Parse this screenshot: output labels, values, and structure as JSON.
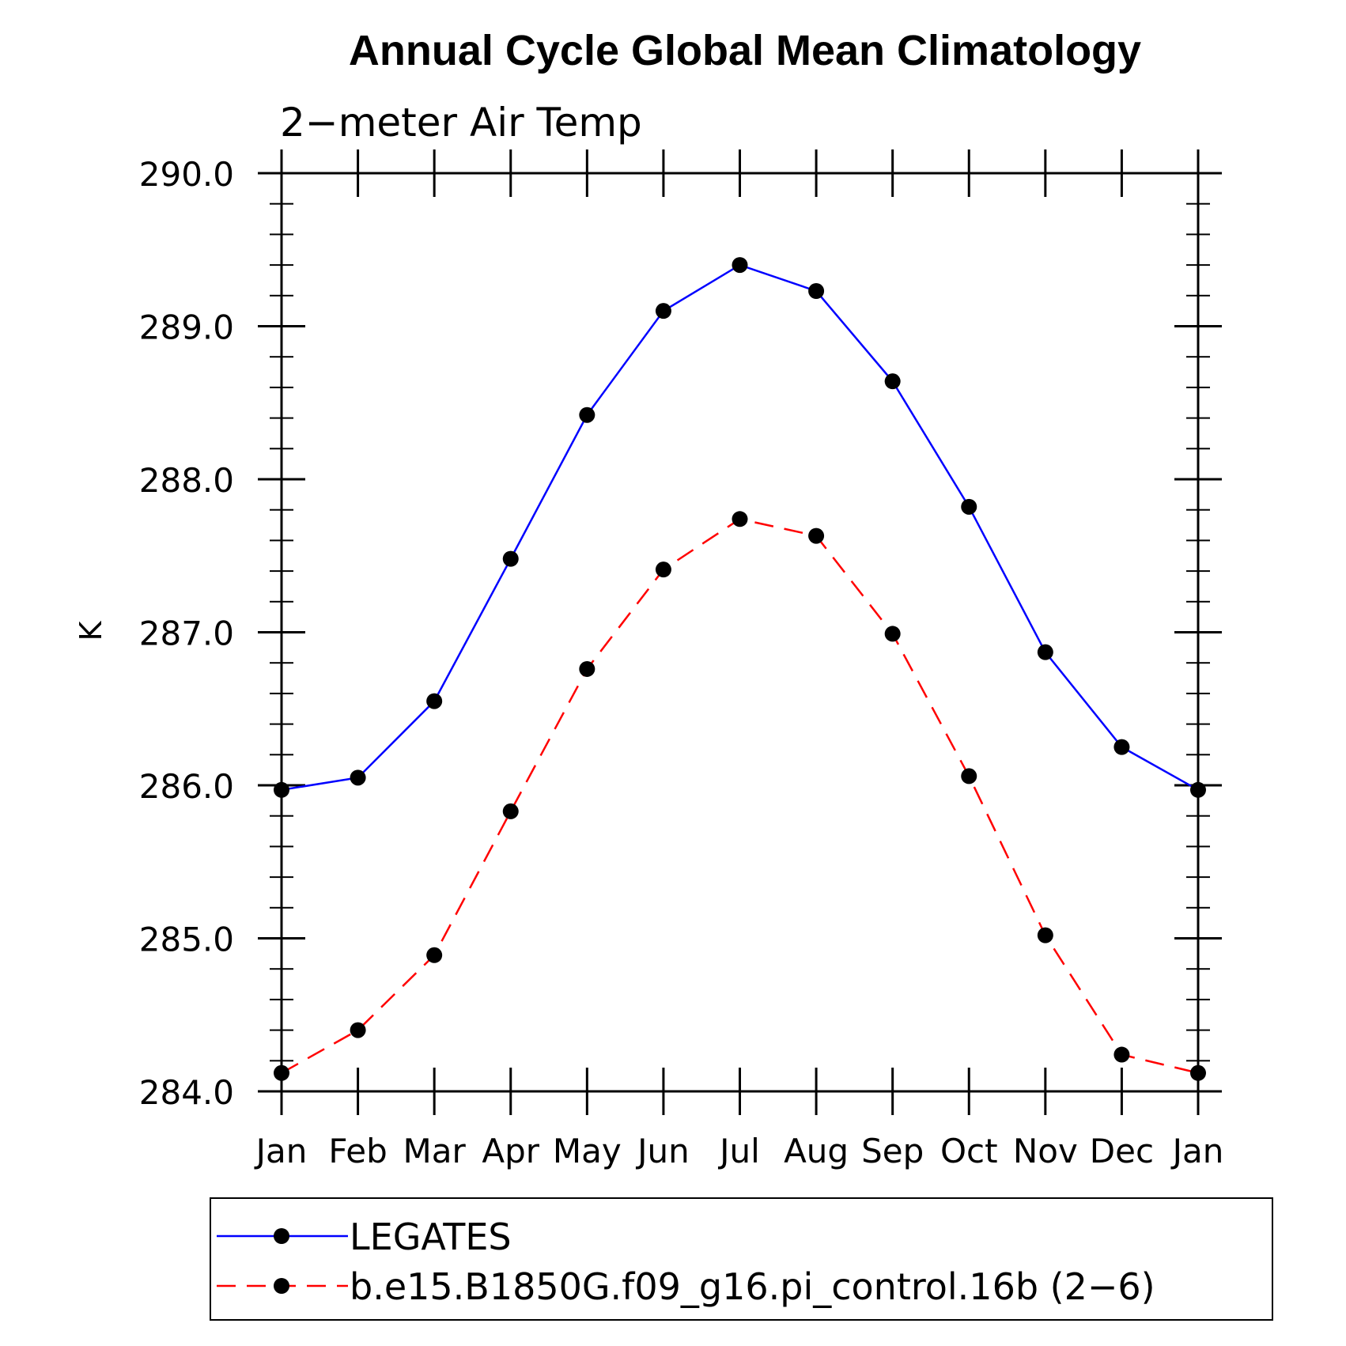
{
  "chart_data": {
    "type": "line",
    "title": "Annual Cycle Global Mean Climatology",
    "subtitle": "2−meter Air Temp",
    "ylabel": "K",
    "xlabel": "",
    "categories": [
      "Jan",
      "Feb",
      "Mar",
      "Apr",
      "May",
      "Jun",
      "Jul",
      "Aug",
      "Sep",
      "Oct",
      "Nov",
      "Dec",
      "Jan"
    ],
    "ylim": [
      284.0,
      290.0
    ],
    "yticks": [
      "284.0",
      "285.0",
      "286.0",
      "287.0",
      "288.0",
      "289.0",
      "290.0"
    ],
    "ytick_values": [
      284,
      285,
      286,
      287,
      288,
      289,
      290
    ],
    "series": [
      {
        "name": "LEGATES",
        "color": "#0000ff",
        "dash": "solid",
        "marker": "filled-circle",
        "values": [
          285.97,
          286.05,
          286.55,
          287.48,
          288.42,
          289.1,
          289.4,
          289.23,
          288.64,
          287.82,
          286.87,
          286.25,
          285.97
        ]
      },
      {
        "name": "b.e15.B1850G.f09_g16.pi_control.16b (2−6)",
        "color": "#ff0000",
        "dash": "dashed",
        "marker": "filled-circle",
        "values": [
          284.12,
          284.4,
          284.89,
          285.83,
          286.76,
          287.41,
          287.74,
          287.63,
          286.99,
          286.06,
          285.02,
          284.24,
          284.12
        ]
      }
    ],
    "grid": false,
    "legend_position": "bottom"
  }
}
